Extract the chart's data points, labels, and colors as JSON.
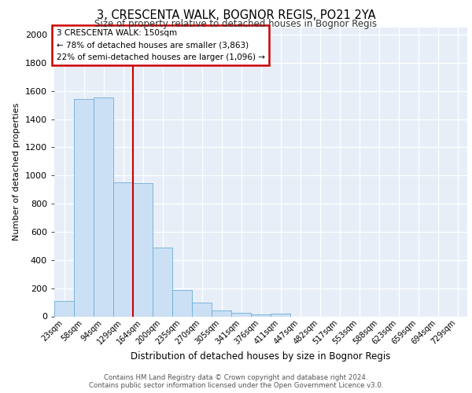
{
  "title": "3, CRESCENTA WALK, BOGNOR REGIS, PO21 2YA",
  "subtitle": "Size of property relative to detached houses in Bognor Regis",
  "xlabel": "Distribution of detached houses by size in Bognor Regis",
  "ylabel": "Number of detached properties",
  "footnote1": "Contains HM Land Registry data © Crown copyright and database right 2024.",
  "footnote2": "Contains public sector information licensed under the Open Government Licence v3.0.",
  "annotation_line1": "3 CRESCENTA WALK: 150sqm",
  "annotation_line2": "← 78% of detached houses are smaller (3,863)",
  "annotation_line3": "22% of semi-detached houses are larger (1,096) →",
  "bar_color": "#cce0f5",
  "bar_edge_color": "#6aaed6",
  "red_line_color": "#cc0000",
  "background_color": "#e8eef8",
  "categories": [
    "23sqm",
    "58sqm",
    "94sqm",
    "129sqm",
    "164sqm",
    "200sqm",
    "235sqm",
    "270sqm",
    "305sqm",
    "341sqm",
    "376sqm",
    "411sqm",
    "447sqm",
    "482sqm",
    "517sqm",
    "553sqm",
    "588sqm",
    "623sqm",
    "659sqm",
    "694sqm",
    "729sqm"
  ],
  "values": [
    110,
    1540,
    1555,
    950,
    945,
    490,
    185,
    95,
    40,
    25,
    15,
    18,
    0,
    0,
    0,
    0,
    0,
    0,
    0,
    0,
    0
  ],
  "red_line_x": 3.5,
  "ylim": [
    0,
    2050
  ],
  "yticks": [
    0,
    200,
    400,
    600,
    800,
    1000,
    1200,
    1400,
    1600,
    1800,
    2000
  ]
}
